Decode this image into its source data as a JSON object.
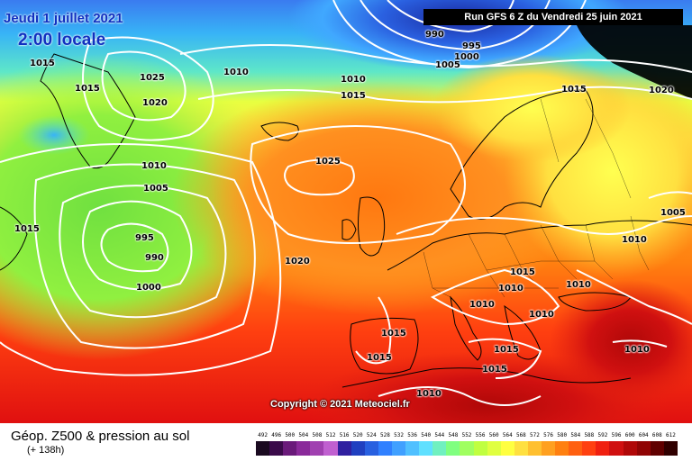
{
  "header": {
    "date": "Jeudi 1 juillet 2021",
    "local_time": "2:00 locale",
    "run": "Run GFS 6 Z du Vendredi 25 juin 2021"
  },
  "copyright": "Copyright © 2021 Meteociel.fr",
  "footer": {
    "product": "Géop. Z500 & pression au sol",
    "lead": "(+ 138h)"
  },
  "isobar_labels": [
    "1015",
    "1015",
    "1025",
    "1020",
    "1010",
    "1005",
    "995",
    "990",
    "1000",
    "1015",
    "1010",
    "1010",
    "1015",
    "990",
    "995",
    "1000",
    "1005",
    "1025",
    "1020",
    "1015",
    "1020",
    "1005",
    "1010",
    "1015",
    "1010",
    "1010",
    "1010",
    "1010",
    "1015",
    "1015",
    "1015",
    "1015",
    "1010",
    "1010"
  ],
  "scale": {
    "labels": [
      "492",
      "496",
      "500",
      "504",
      "508",
      "512",
      "516",
      "520",
      "524",
      "528",
      "532",
      "536",
      "540",
      "544",
      "548",
      "552",
      "556",
      "560",
      "564",
      "568",
      "572",
      "576",
      "580",
      "584",
      "588",
      "592",
      "596",
      "600",
      "604",
      "608",
      "612"
    ],
    "colors": [
      "#1a0a20",
      "#3a0a4a",
      "#6a1a7a",
      "#8a2a9a",
      "#a040b0",
      "#c060d0",
      "#3020a0",
      "#2040c0",
      "#2860e0",
      "#3080ff",
      "#40a0ff",
      "#50c0ff",
      "#60e0ff",
      "#70f0c0",
      "#80ff80",
      "#a0ff60",
      "#c0ff40",
      "#e0ff40",
      "#ffff40",
      "#ffe040",
      "#ffc030",
      "#ffa020",
      "#ff8010",
      "#ff6010",
      "#ff4010",
      "#f02010",
      "#d01010",
      "#b00808",
      "#900404",
      "#600000",
      "#300000"
    ]
  },
  "colors": {
    "title_blue": "#1030c0",
    "isobar": "#ffffff",
    "coast": "#000000"
  }
}
